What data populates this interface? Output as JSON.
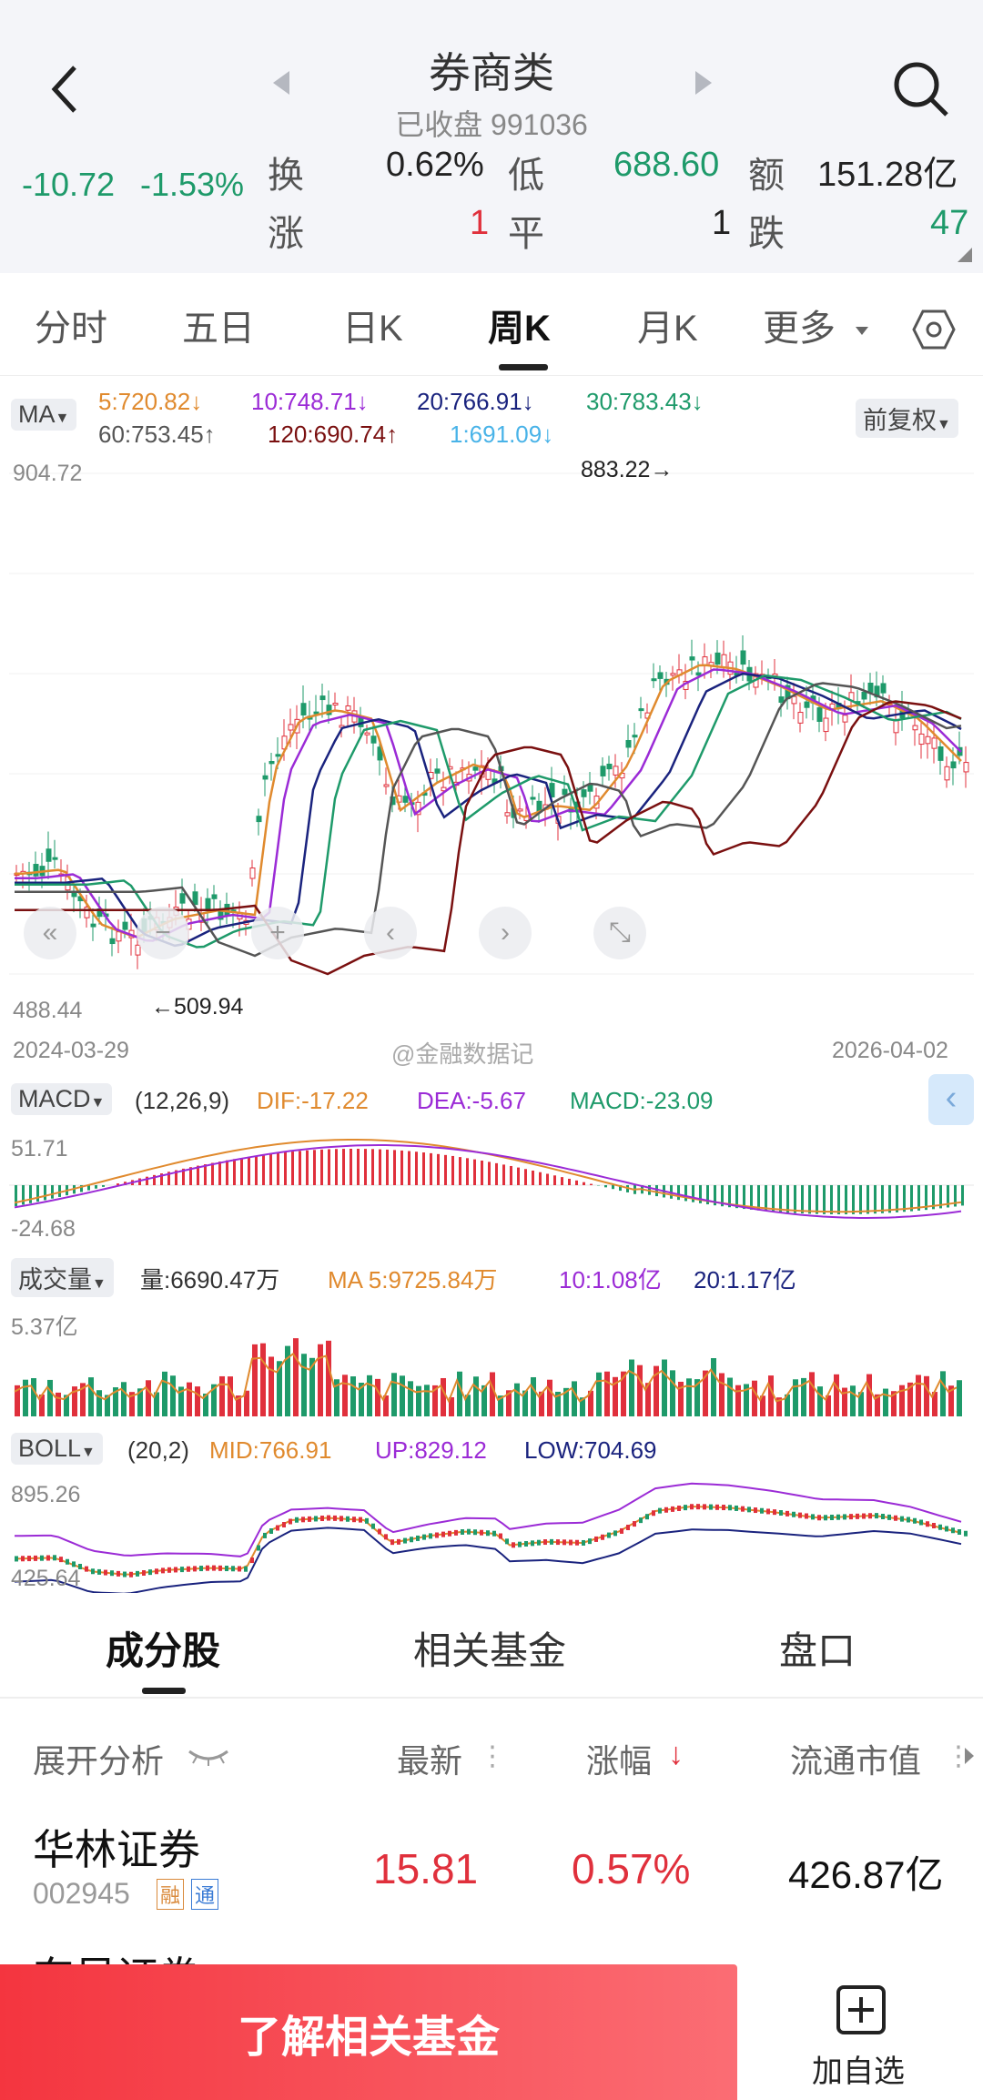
{
  "header": {
    "title": "券商类",
    "subtitle": "已收盘 991036",
    "change_abs": "-10.72",
    "change_pct": "-1.53%",
    "turnover_label": "换",
    "turnover_value": "0.62%",
    "low_label": "低",
    "low_value": "688.60",
    "amount_label": "额",
    "amount_value": "151.28亿",
    "up_label": "涨",
    "up_value": "1",
    "flat_label": "平",
    "flat_value": "1",
    "down_label": "跌",
    "down_value": "47"
  },
  "tabs": [
    "分时",
    "五日",
    "日K",
    "周K",
    "月K",
    "更多"
  ],
  "active_tab": "周K",
  "ma": {
    "label": "MA",
    "fq_label": "前复权",
    "items": [
      {
        "text": "5:720.82↓",
        "color": "#e08a2e"
      },
      {
        "text": "10:748.71↓",
        "color": "#9b2bd6"
      },
      {
        "text": "20:766.91↓",
        "color": "#1a237e"
      },
      {
        "text": "30:783.43↓",
        "color": "#1e9a6a"
      },
      {
        "text": "60:753.45↑",
        "color": "#555555"
      },
      {
        "text": "120:690.74↑",
        "color": "#7a1010"
      },
      {
        "text": "1:691.09↓",
        "color": "#49b3e8"
      }
    ]
  },
  "kchart": {
    "ymax_label": "904.72",
    "ymin_label": "488.44",
    "high_mark": "883.22→",
    "low_mark": "←509.94",
    "date_start": "2024-03-29",
    "date_end": "2026-04-02",
    "watermark": "@金融数据记"
  },
  "macd": {
    "label": "MACD",
    "params": "(12,26,9)",
    "dif": "DIF:-17.22",
    "dea": "DEA:-5.67",
    "macd": "MACD:-23.09",
    "ymax": "51.71",
    "ymin": "-24.68"
  },
  "volume": {
    "label": "成交量",
    "vol": "量:6690.47万",
    "ma5": "MA 5:9725.84万",
    "ma10": "10:1.08亿",
    "ma20": "20:1.17亿",
    "ymax": "5.37亿"
  },
  "boll": {
    "label": "BOLL",
    "params": "(20,2)",
    "mid": "MID:766.91",
    "up": "UP:829.12",
    "low": "LOW:704.69",
    "ymax": "895.26",
    "ymin": "425.64"
  },
  "segments": [
    "成分股",
    "相关基金",
    "盘口"
  ],
  "table": {
    "headers": [
      "展开分析",
      "最新",
      "涨幅",
      "流通市值"
    ],
    "rows": [
      {
        "name": "华林证券",
        "code": "002945",
        "tag1": "融",
        "tag2": "通",
        "price": "15.81",
        "change": "0.57%",
        "mcap": "426.87亿"
      }
    ],
    "partial_row": "东吴证券"
  },
  "bottom": {
    "cta": "了解相关基金",
    "add_watch": "加自选"
  },
  "colors": {
    "up": "#e0303c",
    "down": "#1e9a6a",
    "cta_start": "#f4353f",
    "cta_end": "#fb6d74"
  }
}
